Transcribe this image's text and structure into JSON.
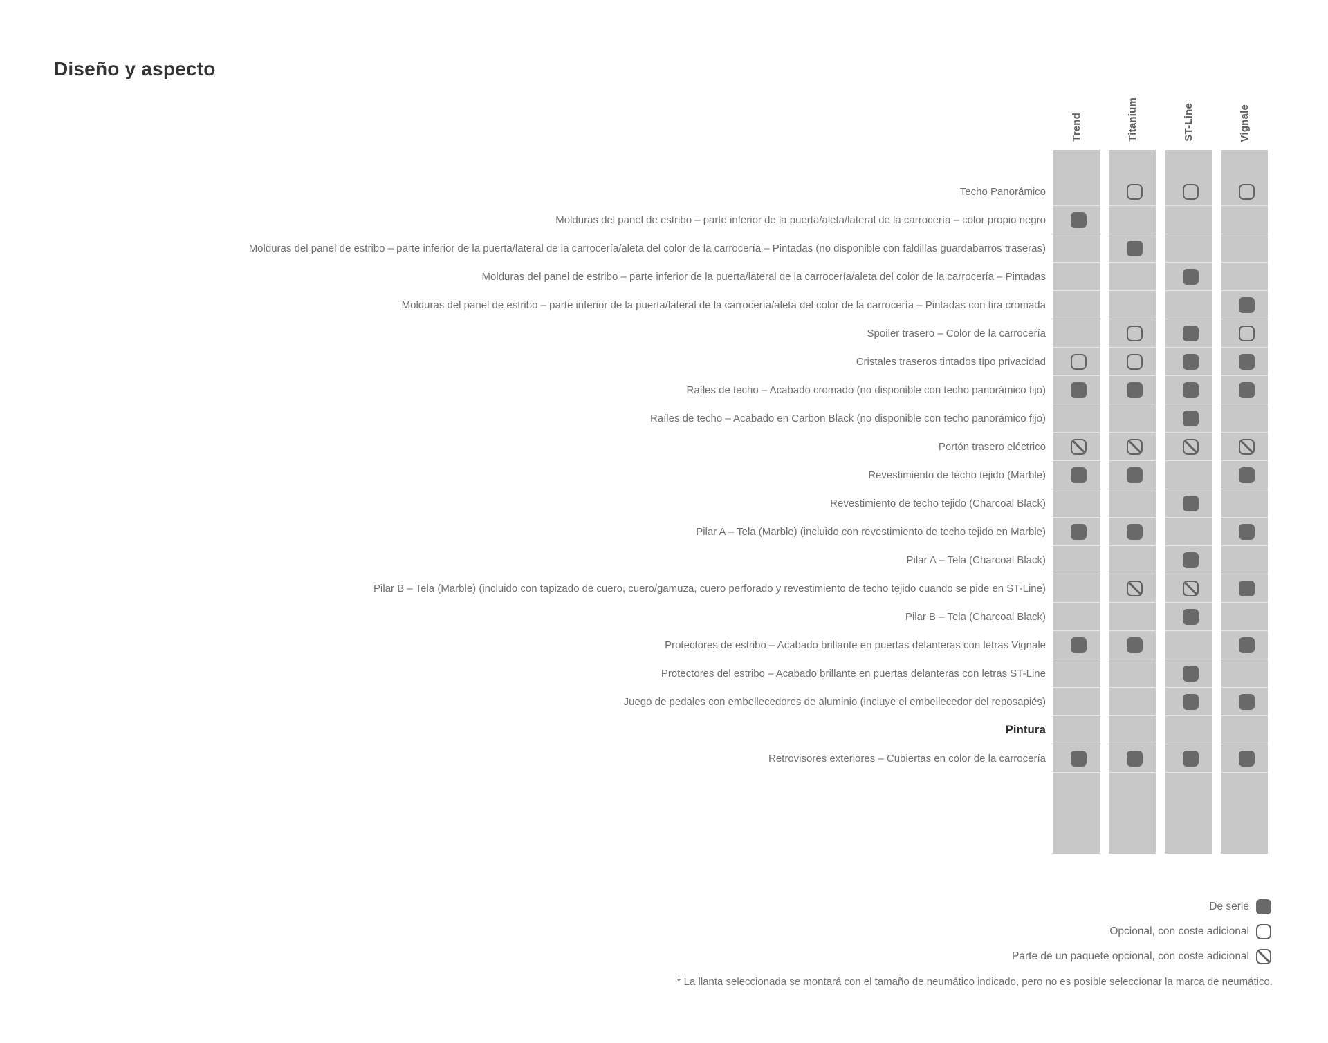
{
  "page": {
    "title": "Diseño y aspecto"
  },
  "colors": {
    "band": "#c8c8c8",
    "symbol": "#696969",
    "label_text": "#6f6f6f",
    "title_text": "#333333"
  },
  "table": {
    "columns": [
      "Trend",
      "Titanium",
      "ST-Line",
      "Vignale"
    ],
    "symbol_codes": {
      "S": "de-serie",
      "O": "opcional-con-coste-adicional",
      "P": "parte-de-un-paquete-opcional",
      "": "no-disponible"
    },
    "rows": [
      {
        "label": "Techo Panorámico",
        "cells": [
          "",
          "O",
          "O",
          "O"
        ]
      },
      {
        "label": "Molduras del panel de estribo  – parte inferior de la puerta/aleta/lateral de la carrocería – color propio negro",
        "cells": [
          "S",
          "",
          "",
          ""
        ]
      },
      {
        "label": "Molduras del panel de estribo – parte inferior de la puerta/lateral de la carrocería/aleta del color de la carrocería – Pintadas (no disponible con faldillas guardabarros traseras)",
        "cells": [
          "",
          "S",
          "",
          ""
        ]
      },
      {
        "label": "Molduras del panel de estribo – parte inferior de la puerta/lateral de la carrocería/aleta del color de la carrocería – Pintadas",
        "cells": [
          "",
          "",
          "S",
          ""
        ]
      },
      {
        "label": "Molduras del panel de estribo – parte inferior de la puerta/lateral de la carrocería/aleta del color de la carrocería – Pintadas con tira cromada",
        "cells": [
          "",
          "",
          "",
          "S"
        ]
      },
      {
        "label": "Spoiler trasero – Color de la carrocería",
        "cells": [
          "",
          "O",
          "S",
          "O"
        ]
      },
      {
        "label": "Cristales traseros tintados tipo privacidad",
        "cells": [
          "O",
          "O",
          "S",
          "S"
        ]
      },
      {
        "label": "Raíles de techo – Acabado cromado (no disponible con techo panorámico fijo)",
        "cells": [
          "S",
          "S",
          "S",
          "S"
        ]
      },
      {
        "label": "Raíles de techo – Acabado en Carbon Black (no disponible con techo panorámico fijo)",
        "cells": [
          "",
          "",
          "S",
          ""
        ]
      },
      {
        "label": "Portón trasero eléctrico",
        "cells": [
          "P",
          "P",
          "P",
          "P"
        ]
      },
      {
        "label": "Revestimiento de techo tejido (Marble)",
        "cells": [
          "S",
          "S",
          "",
          "S"
        ]
      },
      {
        "label": "Revestimiento de techo tejido (Charcoal Black)",
        "cells": [
          "",
          "",
          "S",
          ""
        ]
      },
      {
        "label": "Pilar A – Tela (Marble) (incluido con revestimiento de techo tejido en Marble)",
        "cells": [
          "S",
          "S",
          "",
          "S"
        ]
      },
      {
        "label": "Pilar A – Tela (Charcoal Black)",
        "cells": [
          "",
          "",
          "S",
          ""
        ]
      },
      {
        "label": "Pilar B – Tela (Marble) (incluido con tapizado de cuero, cuero/gamuza, cuero perforado y revestimiento de techo tejido cuando se pide en ST-Line)",
        "cells": [
          "",
          "P",
          "P",
          "S"
        ]
      },
      {
        "label": "Pilar B – Tela (Charcoal Black)",
        "cells": [
          "",
          "",
          "S",
          ""
        ]
      },
      {
        "label": "Protectores de estribo – Acabado brillante en puertas delanteras con letras Vignale",
        "cells": [
          "S",
          "S",
          "",
          "S"
        ]
      },
      {
        "label": "Protectores del estribo – Acabado brillante en puertas delanteras con letras ST-Line",
        "cells": [
          "",
          "",
          "S",
          ""
        ]
      },
      {
        "label": "Juego de pedales con embellecedores de aluminio (incluye el embellecedor del reposapiés)",
        "cells": [
          "",
          "",
          "S",
          "S"
        ]
      },
      {
        "label": "Pintura",
        "bold": true,
        "cells": [
          "",
          "",
          "",
          ""
        ]
      },
      {
        "label": "Retrovisores exteriores – Cubiertas en color de la carrocería",
        "cells": [
          "S",
          "S",
          "S",
          "S"
        ]
      }
    ]
  },
  "legend": {
    "items": [
      {
        "label": "De serie",
        "symbol": "S",
        "icon": "filled-square-icon"
      },
      {
        "label": "Opcional, con coste adicional",
        "symbol": "O",
        "icon": "outline-square-icon"
      },
      {
        "label": "Parte de un paquete opcional, con coste adicional",
        "symbol": "P",
        "icon": "crossed-square-icon"
      }
    ]
  },
  "footnote": "* La llanta seleccionada se montará con el tamaño de neumático indicado, pero no es posible seleccionar la marca de neumático."
}
